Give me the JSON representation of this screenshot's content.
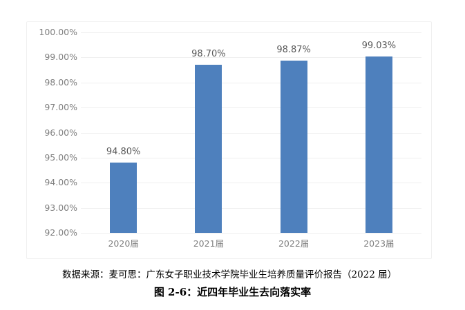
{
  "chart_data": {
    "type": "bar",
    "title": "",
    "xlabel": "",
    "ylabel": "",
    "categories": [
      "2020届",
      "2021届",
      "2022届",
      "2023届"
    ],
    "values": [
      94.8,
      98.7,
      98.87,
      99.03
    ],
    "value_labels": [
      "94.80%",
      "98.70%",
      "98.87%",
      "99.03%"
    ],
    "ylim": [
      92,
      100
    ],
    "yticks": [
      "100.00%",
      "99.00%",
      "98.00%",
      "97.00%",
      "96.00%",
      "95.00%",
      "94.00%",
      "93.00%",
      "92.00%"
    ],
    "grid": true,
    "legend": "none",
    "bar_color": "#4e80bd"
  },
  "source_note": "数据来源：麦可思：广东女子职业技术学院毕业生培养质量评价报告（2022 届）",
  "figure_caption": "图 2-6：近四年毕业生去向落实率"
}
